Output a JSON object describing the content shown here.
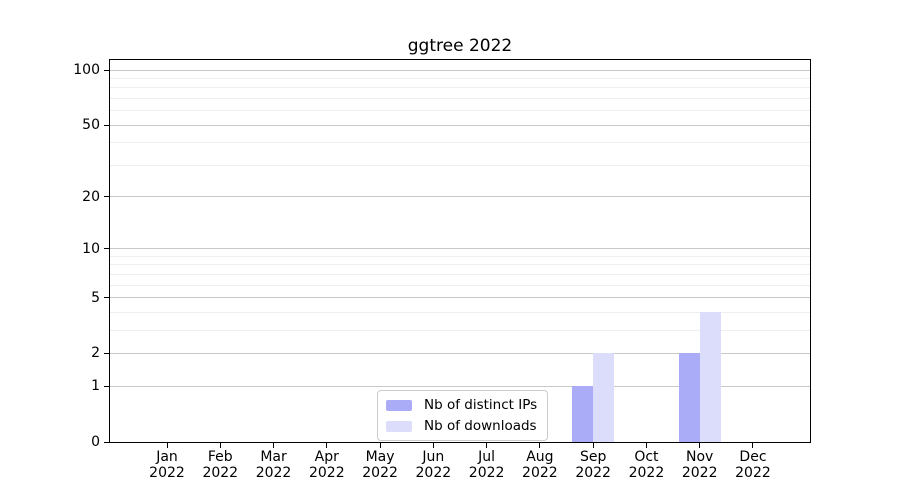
{
  "chart_data": {
    "type": "bar",
    "title": "ggtree 2022",
    "categories": [
      "Jan 2022",
      "Feb 2022",
      "Mar 2022",
      "Apr 2022",
      "May 2022",
      "Jun 2022",
      "Jul 2022",
      "Aug 2022",
      "Sep 2022",
      "Oct 2022",
      "Nov 2022",
      "Dec 2022"
    ],
    "series": [
      {
        "name": "Nb of distinct IPs",
        "color": "#abacf8",
        "values": [
          0,
          0,
          0,
          0,
          0,
          0,
          0,
          0,
          1,
          0,
          2,
          0
        ]
      },
      {
        "name": "Nb of downloads",
        "color": "#dcddfa",
        "values": [
          0,
          0,
          0,
          0,
          0,
          0,
          0,
          0,
          2,
          0,
          4,
          0
        ]
      }
    ],
    "y_axis": {
      "scale": "log10(1+x)",
      "range": [
        0,
        100
      ],
      "ticks": [
        0,
        1,
        2,
        5,
        10,
        20,
        50,
        100
      ],
      "minor_gridlines": [
        3,
        4,
        6,
        7,
        8,
        9,
        30,
        40,
        60,
        70,
        80,
        90
      ]
    },
    "xlabel": "",
    "ylabel": "",
    "grid": true,
    "legend_position": "inside-bottom-center",
    "colors": {
      "grid_major": "#c9c9c9",
      "grid_minor": "#efefef",
      "spine": "#000000"
    }
  }
}
